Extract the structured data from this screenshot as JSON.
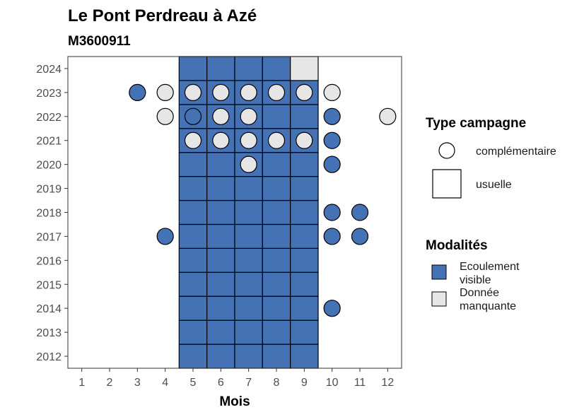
{
  "chart_data": {
    "type": "heatmap",
    "title": "Le Pont Perdreau à Azé",
    "subtitle": "M3600911",
    "xlabel": "Mois",
    "ylabel": "",
    "x_ticks": [
      1,
      2,
      3,
      4,
      5,
      6,
      7,
      8,
      9,
      10,
      11,
      12
    ],
    "y_ticks": [
      2012,
      2013,
      2014,
      2015,
      2016,
      2017,
      2018,
      2019,
      2020,
      2021,
      2022,
      2023,
      2024
    ],
    "xlim": [
      0.5,
      12.5
    ],
    "ylim": [
      2011.5,
      2024.5
    ],
    "grid": false,
    "colors": {
      "Ecoulement visible": "#4472b4",
      "Donnée manquante": "#e6e6e6"
    },
    "legend_position": "right",
    "legend_type": {
      "title": "Type campagne",
      "entries": [
        {
          "label": "complémentaire",
          "shape": "circle"
        },
        {
          "label": "usuelle",
          "shape": "square"
        }
      ]
    },
    "legend_modalites": {
      "title": "Modalités",
      "entries": [
        {
          "label_lines": [
            "Ecoulement",
            "visible"
          ],
          "key": "Ecoulement visible"
        },
        {
          "label_lines": [
            "Donnée",
            "manquante"
          ],
          "key": "Donnée manquante"
        }
      ]
    },
    "usual_points": [
      {
        "m": 5,
        "y": 2012,
        "v": "Ecoulement visible"
      },
      {
        "m": 6,
        "y": 2012,
        "v": "Ecoulement visible"
      },
      {
        "m": 7,
        "y": 2012,
        "v": "Ecoulement visible"
      },
      {
        "m": 8,
        "y": 2012,
        "v": "Ecoulement visible"
      },
      {
        "m": 9,
        "y": 2012,
        "v": "Ecoulement visible"
      },
      {
        "m": 5,
        "y": 2013,
        "v": "Ecoulement visible"
      },
      {
        "m": 6,
        "y": 2013,
        "v": "Ecoulement visible"
      },
      {
        "m": 7,
        "y": 2013,
        "v": "Ecoulement visible"
      },
      {
        "m": 8,
        "y": 2013,
        "v": "Ecoulement visible"
      },
      {
        "m": 9,
        "y": 2013,
        "v": "Ecoulement visible"
      },
      {
        "m": 5,
        "y": 2014,
        "v": "Ecoulement visible"
      },
      {
        "m": 6,
        "y": 2014,
        "v": "Ecoulement visible"
      },
      {
        "m": 7,
        "y": 2014,
        "v": "Ecoulement visible"
      },
      {
        "m": 8,
        "y": 2014,
        "v": "Ecoulement visible"
      },
      {
        "m": 9,
        "y": 2014,
        "v": "Ecoulement visible"
      },
      {
        "m": 5,
        "y": 2015,
        "v": "Ecoulement visible"
      },
      {
        "m": 6,
        "y": 2015,
        "v": "Ecoulement visible"
      },
      {
        "m": 7,
        "y": 2015,
        "v": "Ecoulement visible"
      },
      {
        "m": 8,
        "y": 2015,
        "v": "Ecoulement visible"
      },
      {
        "m": 9,
        "y": 2015,
        "v": "Ecoulement visible"
      },
      {
        "m": 5,
        "y": 2016,
        "v": "Ecoulement visible"
      },
      {
        "m": 6,
        "y": 2016,
        "v": "Ecoulement visible"
      },
      {
        "m": 7,
        "y": 2016,
        "v": "Ecoulement visible"
      },
      {
        "m": 8,
        "y": 2016,
        "v": "Ecoulement visible"
      },
      {
        "m": 9,
        "y": 2016,
        "v": "Ecoulement visible"
      },
      {
        "m": 5,
        "y": 2017,
        "v": "Ecoulement visible"
      },
      {
        "m": 6,
        "y": 2017,
        "v": "Ecoulement visible"
      },
      {
        "m": 7,
        "y": 2017,
        "v": "Ecoulement visible"
      },
      {
        "m": 8,
        "y": 2017,
        "v": "Ecoulement visible"
      },
      {
        "m": 9,
        "y": 2017,
        "v": "Ecoulement visible"
      },
      {
        "m": 5,
        "y": 2018,
        "v": "Ecoulement visible"
      },
      {
        "m": 6,
        "y": 2018,
        "v": "Ecoulement visible"
      },
      {
        "m": 7,
        "y": 2018,
        "v": "Ecoulement visible"
      },
      {
        "m": 8,
        "y": 2018,
        "v": "Ecoulement visible"
      },
      {
        "m": 9,
        "y": 2018,
        "v": "Ecoulement visible"
      },
      {
        "m": 5,
        "y": 2019,
        "v": "Ecoulement visible"
      },
      {
        "m": 6,
        "y": 2019,
        "v": "Ecoulement visible"
      },
      {
        "m": 7,
        "y": 2019,
        "v": "Ecoulement visible"
      },
      {
        "m": 8,
        "y": 2019,
        "v": "Ecoulement visible"
      },
      {
        "m": 9,
        "y": 2019,
        "v": "Ecoulement visible"
      },
      {
        "m": 5,
        "y": 2020,
        "v": "Ecoulement visible"
      },
      {
        "m": 6,
        "y": 2020,
        "v": "Ecoulement visible"
      },
      {
        "m": 7,
        "y": 2020,
        "v": "Ecoulement visible"
      },
      {
        "m": 8,
        "y": 2020,
        "v": "Ecoulement visible"
      },
      {
        "m": 9,
        "y": 2020,
        "v": "Ecoulement visible"
      },
      {
        "m": 5,
        "y": 2021,
        "v": "Ecoulement visible"
      },
      {
        "m": 6,
        "y": 2021,
        "v": "Ecoulement visible"
      },
      {
        "m": 7,
        "y": 2021,
        "v": "Ecoulement visible"
      },
      {
        "m": 8,
        "y": 2021,
        "v": "Ecoulement visible"
      },
      {
        "m": 9,
        "y": 2021,
        "v": "Ecoulement visible"
      },
      {
        "m": 5,
        "y": 2022,
        "v": "Ecoulement visible"
      },
      {
        "m": 6,
        "y": 2022,
        "v": "Ecoulement visible"
      },
      {
        "m": 7,
        "y": 2022,
        "v": "Ecoulement visible"
      },
      {
        "m": 8,
        "y": 2022,
        "v": "Ecoulement visible"
      },
      {
        "m": 9,
        "y": 2022,
        "v": "Ecoulement visible"
      },
      {
        "m": 5,
        "y": 2023,
        "v": "Ecoulement visible"
      },
      {
        "m": 6,
        "y": 2023,
        "v": "Ecoulement visible"
      },
      {
        "m": 7,
        "y": 2023,
        "v": "Ecoulement visible"
      },
      {
        "m": 8,
        "y": 2023,
        "v": "Ecoulement visible"
      },
      {
        "m": 9,
        "y": 2023,
        "v": "Ecoulement visible"
      },
      {
        "m": 5,
        "y": 2024,
        "v": "Ecoulement visible"
      },
      {
        "m": 6,
        "y": 2024,
        "v": "Ecoulement visible"
      },
      {
        "m": 7,
        "y": 2024,
        "v": "Ecoulement visible"
      },
      {
        "m": 8,
        "y": 2024,
        "v": "Ecoulement visible"
      },
      {
        "m": 9,
        "y": 2024,
        "v": "Donnée manquante"
      }
    ],
    "complementary_points": [
      {
        "m": 3,
        "y": 2023,
        "v": "Ecoulement visible"
      },
      {
        "m": 4,
        "y": 2023,
        "v": "Donnée manquante"
      },
      {
        "m": 5,
        "y": 2023,
        "v": "Donnée manquante"
      },
      {
        "m": 6,
        "y": 2023,
        "v": "Donnée manquante"
      },
      {
        "m": 7,
        "y": 2023,
        "v": "Donnée manquante"
      },
      {
        "m": 8,
        "y": 2023,
        "v": "Donnée manquante"
      },
      {
        "m": 9,
        "y": 2023,
        "v": "Donnée manquante"
      },
      {
        "m": 10,
        "y": 2023,
        "v": "Donnée manquante"
      },
      {
        "m": 4,
        "y": 2022,
        "v": "Donnée manquante"
      },
      {
        "m": 5,
        "y": 2022,
        "v": "Ecoulement visible"
      },
      {
        "m": 6,
        "y": 2022,
        "v": "Donnée manquante"
      },
      {
        "m": 7,
        "y": 2022,
        "v": "Donnée manquante"
      },
      {
        "m": 10,
        "y": 2022,
        "v": "Ecoulement visible"
      },
      {
        "m": 12,
        "y": 2022,
        "v": "Donnée manquante"
      },
      {
        "m": 5,
        "y": 2021,
        "v": "Donnée manquante"
      },
      {
        "m": 6,
        "y": 2021,
        "v": "Donnée manquante"
      },
      {
        "m": 7,
        "y": 2021,
        "v": "Donnée manquante"
      },
      {
        "m": 8,
        "y": 2021,
        "v": "Donnée manquante"
      },
      {
        "m": 9,
        "y": 2021,
        "v": "Donnée manquante"
      },
      {
        "m": 10,
        "y": 2021,
        "v": "Ecoulement visible"
      },
      {
        "m": 7,
        "y": 2020,
        "v": "Donnée manquante"
      },
      {
        "m": 10,
        "y": 2020,
        "v": "Ecoulement visible"
      },
      {
        "m": 10,
        "y": 2018,
        "v": "Ecoulement visible"
      },
      {
        "m": 11,
        "y": 2018,
        "v": "Ecoulement visible"
      },
      {
        "m": 4,
        "y": 2017,
        "v": "Ecoulement visible"
      },
      {
        "m": 10,
        "y": 2017,
        "v": "Ecoulement visible"
      },
      {
        "m": 11,
        "y": 2017,
        "v": "Ecoulement visible"
      },
      {
        "m": 10,
        "y": 2014,
        "v": "Ecoulement visible"
      }
    ]
  }
}
